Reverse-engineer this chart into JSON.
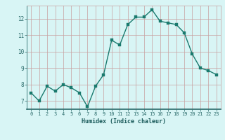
{
  "x": [
    0,
    1,
    2,
    3,
    4,
    5,
    6,
    7,
    8,
    9,
    10,
    11,
    12,
    13,
    14,
    15,
    16,
    17,
    18,
    19,
    20,
    21,
    22,
    23
  ],
  "y": [
    7.5,
    7.0,
    7.9,
    7.6,
    8.0,
    7.8,
    7.5,
    6.65,
    7.9,
    8.6,
    10.7,
    10.4,
    11.65,
    12.1,
    12.1,
    12.55,
    11.85,
    11.75,
    11.65,
    11.15,
    9.85,
    9.0,
    8.85,
    8.6
  ],
  "xlim": [
    -0.5,
    23.5
  ],
  "ylim": [
    6.5,
    12.8
  ],
  "yticks": [
    7,
    8,
    9,
    10,
    11,
    12
  ],
  "xticks": [
    0,
    1,
    2,
    3,
    4,
    5,
    6,
    7,
    8,
    9,
    10,
    11,
    12,
    13,
    14,
    15,
    16,
    17,
    18,
    19,
    20,
    21,
    22,
    23
  ],
  "xlabel": "Humidex (Indice chaleur)",
  "line_color": "#1a7a6e",
  "marker_color": "#1a7a6e",
  "bg_color": "#d8f5f5",
  "grid_color": "#c8a0a0",
  "axis_color": "#2a6a6a",
  "tick_color": "#2a6a6a",
  "label_color": "#1a5a5a"
}
